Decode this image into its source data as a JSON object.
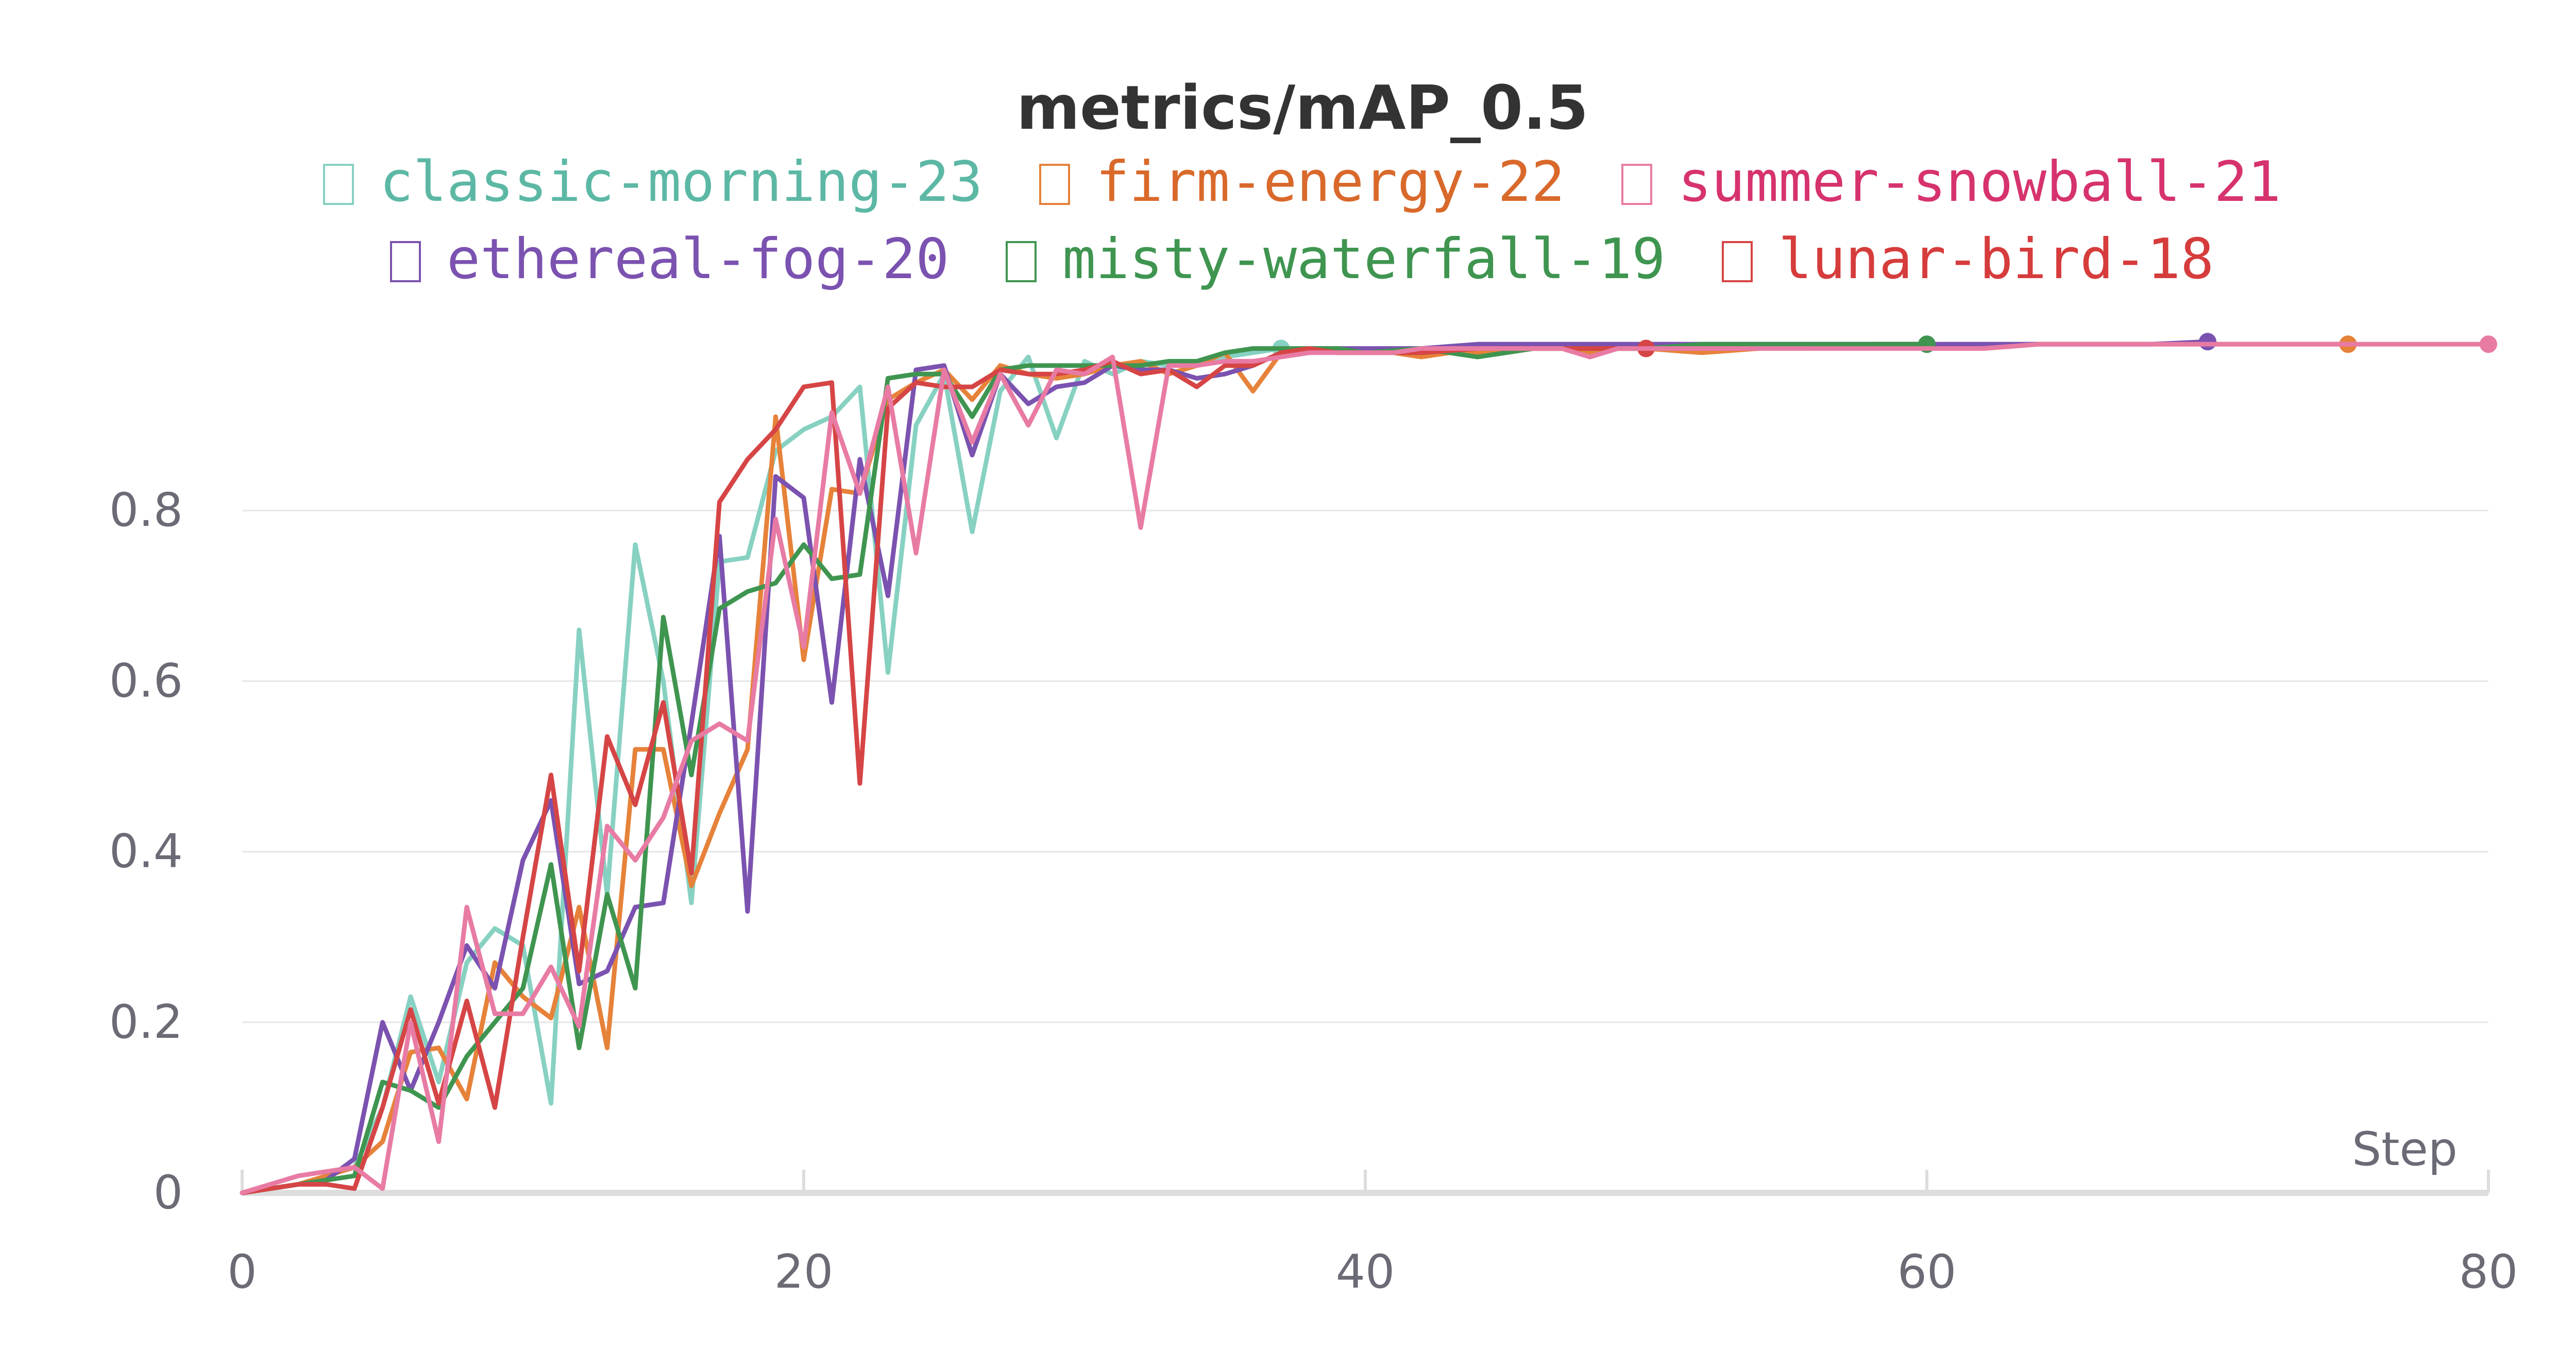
{
  "chart_data": {
    "type": "line",
    "title": "metrics/mAP_0.5",
    "xlabel": "Step",
    "ylabel": "",
    "xlim": [
      0,
      80
    ],
    "ylim": [
      0,
      1
    ],
    "xticks": [
      0,
      20,
      40,
      60,
      80
    ],
    "yticks": [
      0,
      0.2,
      0.4,
      0.6,
      0.8
    ],
    "ytick_labels": [
      "0",
      "0.2",
      "0.4",
      "0.6",
      "0.8"
    ],
    "xtick_labels": [
      "0",
      "20",
      "40",
      "60",
      "80"
    ],
    "grid": true,
    "legend_position": "top",
    "series": [
      {
        "name": "classic-morning-23",
        "color": "#87d1c2",
        "legend_color": "#5cb8a4",
        "x": [
          0,
          1,
          2,
          3,
          4,
          5,
          6,
          7,
          8,
          9,
          10,
          11,
          12,
          13,
          14,
          15,
          16,
          17,
          18,
          19,
          20,
          21,
          22,
          23,
          24,
          25,
          26,
          27,
          28,
          29,
          30,
          31,
          32,
          33,
          34,
          35,
          36,
          37
        ],
        "y": [
          0,
          0.005,
          0.01,
          0.02,
          0.03,
          0.1,
          0.23,
          0.13,
          0.27,
          0.31,
          0.29,
          0.105,
          0.66,
          0.35,
          0.76,
          0.6,
          0.34,
          0.74,
          0.745,
          0.87,
          0.895,
          0.91,
          0.945,
          0.61,
          0.9,
          0.96,
          0.775,
          0.94,
          0.98,
          0.885,
          0.975,
          0.96,
          0.975,
          0.97,
          0.975,
          0.98,
          0.985,
          0.99
        ]
      },
      {
        "name": "firm-energy-22",
        "color": "#e6823a",
        "legend_color": "#d9692b",
        "x": [
          0,
          1,
          2,
          3,
          4,
          5,
          6,
          7,
          8,
          9,
          10,
          11,
          12,
          13,
          14,
          15,
          16,
          17,
          18,
          19,
          20,
          21,
          22,
          23,
          24,
          25,
          26,
          27,
          28,
          29,
          30,
          31,
          32,
          33,
          34,
          35,
          36,
          37,
          38,
          39,
          40,
          41,
          42,
          43,
          44,
          45,
          46,
          47,
          48,
          49,
          50,
          52,
          54,
          56,
          58,
          60,
          62,
          64,
          66,
          68,
          70,
          72,
          74,
          75
        ],
        "y": [
          0,
          0.005,
          0.01,
          0.02,
          0.03,
          0.06,
          0.165,
          0.17,
          0.11,
          0.27,
          0.23,
          0.205,
          0.335,
          0.17,
          0.52,
          0.52,
          0.36,
          0.445,
          0.52,
          0.91,
          0.625,
          0.825,
          0.82,
          0.93,
          0.95,
          0.965,
          0.93,
          0.97,
          0.96,
          0.955,
          0.96,
          0.97,
          0.975,
          0.96,
          0.97,
          0.985,
          0.94,
          0.985,
          0.99,
          0.985,
          0.985,
          0.985,
          0.98,
          0.985,
          0.985,
          0.985,
          0.99,
          0.99,
          0.985,
          0.99,
          0.99,
          0.985,
          0.99,
          0.99,
          0.995,
          0.995,
          0.99,
          0.995,
          0.995,
          0.995,
          0.995,
          0.995,
          0.995,
          0.995
        ]
      },
      {
        "name": "summer-snowball-21",
        "color": "#e87ba4",
        "legend_color": "#d6336e",
        "x": [
          0,
          1,
          2,
          3,
          4,
          5,
          6,
          7,
          8,
          9,
          10,
          11,
          12,
          13,
          14,
          15,
          16,
          17,
          18,
          19,
          20,
          21,
          22,
          23,
          24,
          25,
          26,
          27,
          28,
          29,
          30,
          31,
          32,
          33,
          34,
          35,
          36,
          37,
          38,
          39,
          40,
          41,
          42,
          43,
          44,
          45,
          46,
          47,
          48,
          49,
          50,
          52,
          54,
          56,
          58,
          60,
          62,
          64,
          66,
          68,
          70,
          72,
          74,
          76,
          78,
          80
        ],
        "y": [
          0,
          0.01,
          0.02,
          0.025,
          0.03,
          0.005,
          0.2,
          0.06,
          0.335,
          0.21,
          0.21,
          0.265,
          0.195,
          0.43,
          0.39,
          0.44,
          0.53,
          0.55,
          0.53,
          0.79,
          0.64,
          0.915,
          0.82,
          0.945,
          0.75,
          0.965,
          0.88,
          0.96,
          0.9,
          0.965,
          0.96,
          0.98,
          0.78,
          0.97,
          0.97,
          0.975,
          0.975,
          0.98,
          0.985,
          0.985,
          0.985,
          0.985,
          0.99,
          0.99,
          0.99,
          0.99,
          0.99,
          0.99,
          0.98,
          0.99,
          0.99,
          0.99,
          0.99,
          0.99,
          0.99,
          0.99,
          0.99,
          0.995,
          0.995,
          0.995,
          0.995,
          0.995,
          0.995,
          0.995,
          0.995,
          0.995
        ]
      },
      {
        "name": "ethereal-fog-20",
        "color": "#7b52b0",
        "legend_color": "#7b52b0",
        "x": [
          0,
          1,
          2,
          3,
          4,
          5,
          6,
          7,
          8,
          9,
          10,
          11,
          12,
          13,
          14,
          15,
          16,
          17,
          18,
          19,
          20,
          21,
          22,
          23,
          24,
          25,
          26,
          27,
          28,
          29,
          30,
          31,
          32,
          33,
          34,
          35,
          36,
          37,
          38,
          39,
          40,
          42,
          44,
          46,
          48,
          50,
          52,
          54,
          56,
          58,
          60,
          62,
          64,
          66,
          68,
          70
        ],
        "y": [
          0,
          0.005,
          0.01,
          0.015,
          0.04,
          0.2,
          0.12,
          0.2,
          0.29,
          0.24,
          0.39,
          0.46,
          0.245,
          0.26,
          0.335,
          0.34,
          0.55,
          0.77,
          0.33,
          0.84,
          0.815,
          0.575,
          0.86,
          0.7,
          0.965,
          0.97,
          0.865,
          0.96,
          0.925,
          0.945,
          0.95,
          0.97,
          0.965,
          0.965,
          0.955,
          0.96,
          0.97,
          0.985,
          0.99,
          0.99,
          0.99,
          0.99,
          0.995,
          0.995,
          0.995,
          0.995,
          0.995,
          0.995,
          0.995,
          0.995,
          0.995,
          0.995,
          0.995,
          0.995,
          0.995,
          0.998
        ]
      },
      {
        "name": "misty-waterfall-19",
        "color": "#3f9550",
        "legend_color": "#3f9550",
        "x": [
          0,
          1,
          2,
          3,
          4,
          5,
          6,
          7,
          8,
          9,
          10,
          11,
          12,
          13,
          14,
          15,
          16,
          17,
          18,
          19,
          20,
          21,
          22,
          23,
          24,
          25,
          26,
          27,
          28,
          29,
          30,
          31,
          32,
          33,
          34,
          35,
          36,
          37,
          38,
          39,
          40,
          42,
          44,
          46,
          48,
          50,
          52,
          54,
          56,
          58,
          60
        ],
        "y": [
          0,
          0.005,
          0.01,
          0.015,
          0.02,
          0.13,
          0.12,
          0.1,
          0.16,
          0.2,
          0.24,
          0.385,
          0.17,
          0.35,
          0.24,
          0.675,
          0.49,
          0.685,
          0.705,
          0.715,
          0.76,
          0.72,
          0.725,
          0.955,
          0.96,
          0.96,
          0.91,
          0.965,
          0.97,
          0.97,
          0.97,
          0.97,
          0.97,
          0.975,
          0.975,
          0.985,
          0.99,
          0.99,
          0.99,
          0.99,
          0.985,
          0.99,
          0.98,
          0.99,
          0.99,
          0.99,
          0.995,
          0.995,
          0.995,
          0.995,
          0.995
        ]
      },
      {
        "name": "lunar-bird-18",
        "color": "#d64545",
        "legend_color": "#d63c3c",
        "x": [
          0,
          1,
          2,
          3,
          4,
          5,
          6,
          7,
          8,
          9,
          10,
          11,
          12,
          13,
          14,
          15,
          16,
          17,
          18,
          19,
          20,
          21,
          22,
          23,
          24,
          25,
          26,
          27,
          28,
          29,
          30,
          31,
          32,
          33,
          34,
          35,
          36,
          37,
          38,
          39,
          40,
          42,
          44,
          46,
          48,
          50
        ],
        "y": [
          0,
          0.005,
          0.01,
          0.01,
          0.005,
          0.1,
          0.215,
          0.105,
          0.225,
          0.1,
          0.3,
          0.49,
          0.26,
          0.535,
          0.455,
          0.575,
          0.375,
          0.81,
          0.86,
          0.895,
          0.945,
          0.95,
          0.48,
          0.92,
          0.95,
          0.945,
          0.945,
          0.965,
          0.96,
          0.96,
          0.965,
          0.975,
          0.96,
          0.965,
          0.945,
          0.97,
          0.97,
          0.985,
          0.99,
          0.985,
          0.985,
          0.985,
          0.99,
          0.99,
          0.99,
          0.99
        ]
      }
    ]
  }
}
